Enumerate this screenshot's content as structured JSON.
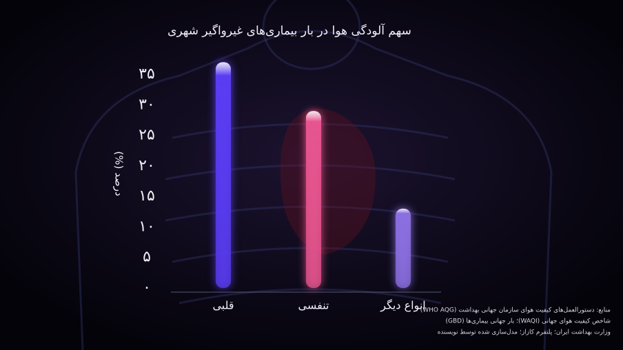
{
  "chart_data": {
    "type": "bar",
    "title": "سهم آلودگی هوا در بار بیماری‌های غیرواگیر شهری",
    "y_label": "درصد (%)",
    "categories": [
      "قلبی",
      "تنفسی",
      "انواع دیگر"
    ],
    "values": [
      37,
      29,
      13
    ],
    "colors": [
      "#5a3df2",
      "#e6558f",
      "#8b6fe0"
    ],
    "ylim": [
      0,
      38
    ],
    "yticks": [
      {
        "value": 0,
        "label": "۰"
      },
      {
        "value": 5,
        "label": "۵"
      },
      {
        "value": 10,
        "label": "۱۰"
      },
      {
        "value": 15,
        "label": "۱۵"
      },
      {
        "value": 20,
        "label": "۲۰"
      },
      {
        "value": 25,
        "label": "۲۵"
      },
      {
        "value": 30,
        "label": "۳۰"
      },
      {
        "value": 35,
        "label": "۳۵"
      }
    ],
    "sources": [
      "منابع: دستورالعمل‌های کیفیت هوای سازمان جهانی بهداشت (WHO AQG)",
      "شاخص کیفیت هوای جهانی (WAQI)؛ بار جهانی بیماری‌ها (GBD)",
      "وزارت بهداشت ایران؛ پلتفرم کازاز؛ مدل‌سازی شده توسط نویسنده"
    ]
  }
}
